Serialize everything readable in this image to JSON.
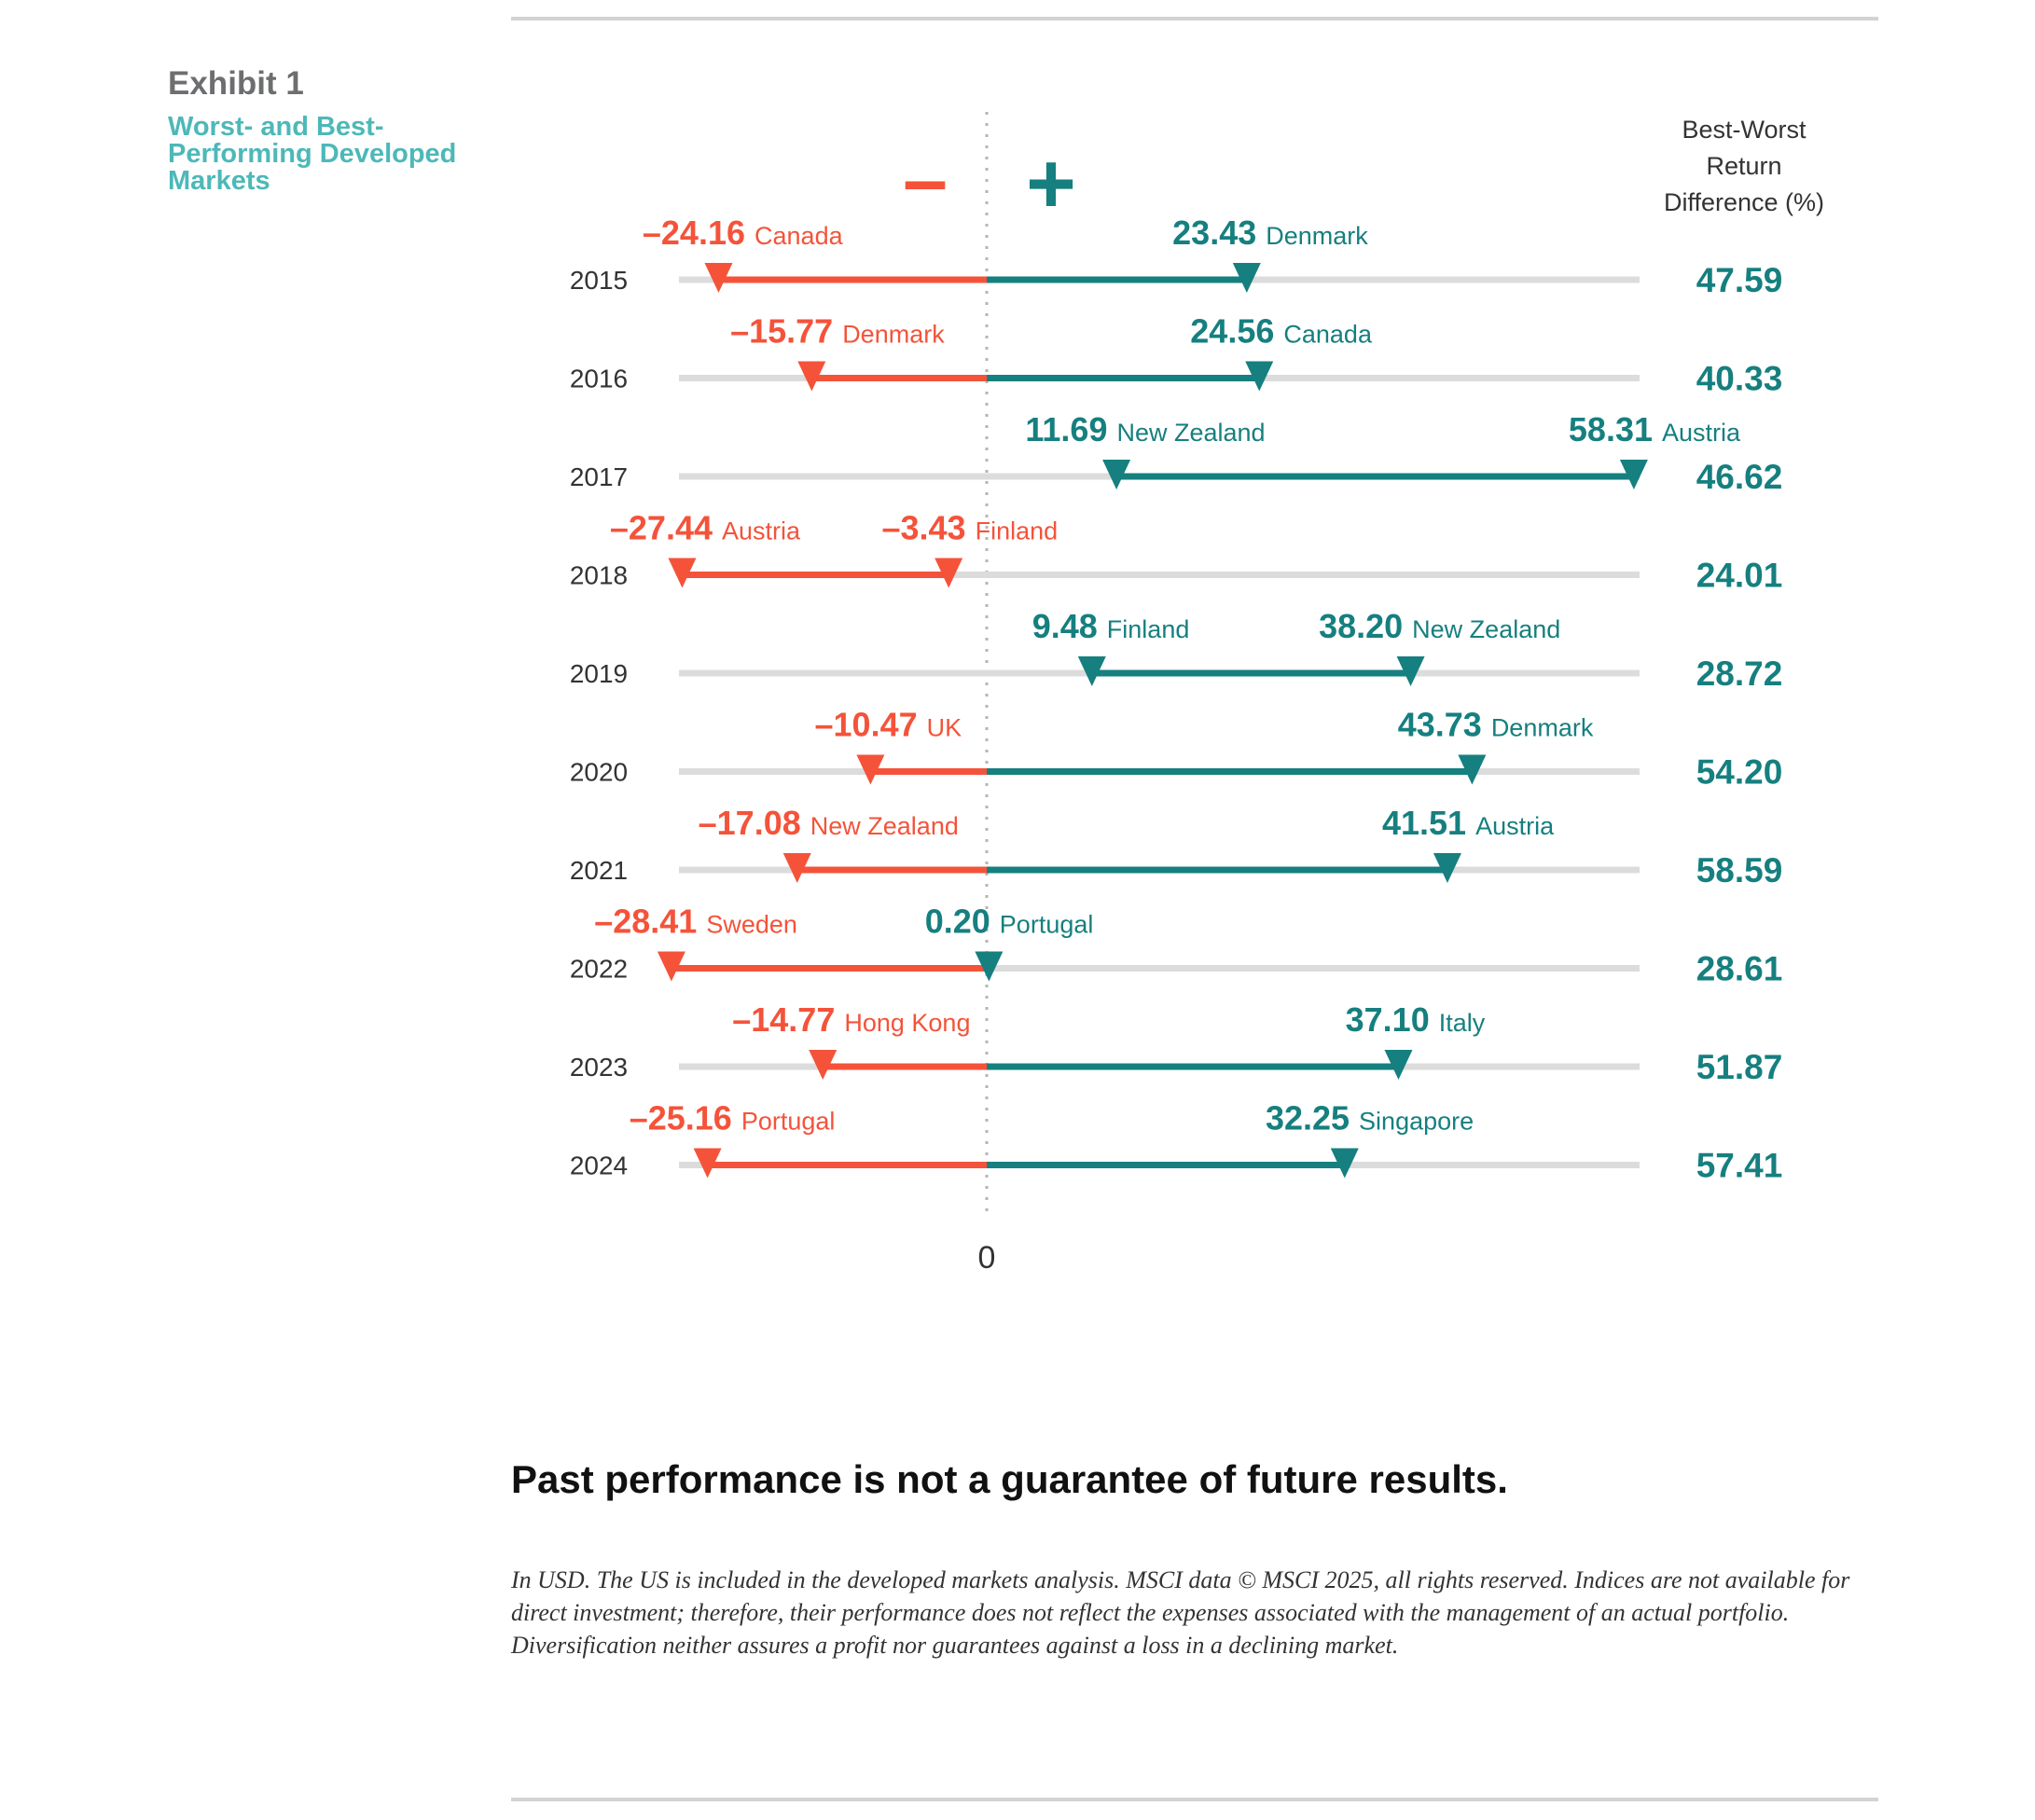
{
  "exhibit_label": "Exhibit 1",
  "exhibit_title": "Worst- and Best-Performing Developed Markets",
  "minus_sign": "–",
  "plus_sign": "+",
  "zero_label": "0",
  "diff_header": [
    "Best-Worst",
    "Return",
    "Difference (%)"
  ],
  "headline": "Past performance is not a guarantee of future results.",
  "footnote": "In USD. The US is included in the developed markets analysis. MSCI data © MSCI 2025, all rights reserved. Indices are not available for direct investment; therefore, their performance does not reflect the expenses associated with the management of an actual portfolio. Diversification neither assures a profit nor guarantees against a loss in a declining market.",
  "colors": {
    "negative": "#f4533a",
    "positive": "#167f7f",
    "track": "#dcdcdc",
    "title_teal": "#4db8b8",
    "text": "#333333"
  },
  "chart_data": {
    "type": "dumbbell",
    "title": "Worst- and Best-Performing Developed Markets",
    "xlabel": "0",
    "xlim": [
      -30,
      60
    ],
    "rows": [
      {
        "year": "2015",
        "worst": {
          "value": -24.16,
          "label": "–24.16",
          "country": "Canada"
        },
        "best": {
          "value": 23.43,
          "label": "23.43",
          "country": "Denmark"
        },
        "diff": "47.59"
      },
      {
        "year": "2016",
        "worst": {
          "value": -15.77,
          "label": "–15.77",
          "country": "Denmark"
        },
        "best": {
          "value": 24.56,
          "label": "24.56",
          "country": "Canada"
        },
        "diff": "40.33"
      },
      {
        "year": "2017",
        "worst": {
          "value": 11.69,
          "label": "11.69",
          "country": "New Zealand"
        },
        "best": {
          "value": 58.31,
          "label": "58.31",
          "country": "Austria"
        },
        "diff": "46.62"
      },
      {
        "year": "2018",
        "worst": {
          "value": -27.44,
          "label": "–27.44",
          "country": "Austria"
        },
        "best": {
          "value": -3.43,
          "label": "–3.43",
          "country": "Finland"
        },
        "diff": "24.01"
      },
      {
        "year": "2019",
        "worst": {
          "value": 9.48,
          "label": "9.48",
          "country": "Finland"
        },
        "best": {
          "value": 38.2,
          "label": "38.20",
          "country": "New Zealand"
        },
        "diff": "28.72"
      },
      {
        "year": "2020",
        "worst": {
          "value": -10.47,
          "label": "–10.47",
          "country": "UK"
        },
        "best": {
          "value": 43.73,
          "label": "43.73",
          "country": "Denmark"
        },
        "diff": "54.20"
      },
      {
        "year": "2021",
        "worst": {
          "value": -17.08,
          "label": "–17.08",
          "country": "New Zealand"
        },
        "best": {
          "value": 41.51,
          "label": "41.51",
          "country": "Austria"
        },
        "diff": "58.59"
      },
      {
        "year": "2022",
        "worst": {
          "value": -28.41,
          "label": "–28.41",
          "country": "Sweden"
        },
        "best": {
          "value": 0.2,
          "label": "0.20",
          "country": "Portugal"
        },
        "diff": "28.61"
      },
      {
        "year": "2023",
        "worst": {
          "value": -14.77,
          "label": "–14.77",
          "country": "Hong Kong"
        },
        "best": {
          "value": 37.1,
          "label": "37.10",
          "country": "Italy"
        },
        "diff": "51.87"
      },
      {
        "year": "2024",
        "worst": {
          "value": -25.16,
          "label": "–25.16",
          "country": "Portugal"
        },
        "best": {
          "value": 32.25,
          "label": "32.25",
          "country": "Singapore"
        },
        "diff": "57.41"
      }
    ]
  }
}
